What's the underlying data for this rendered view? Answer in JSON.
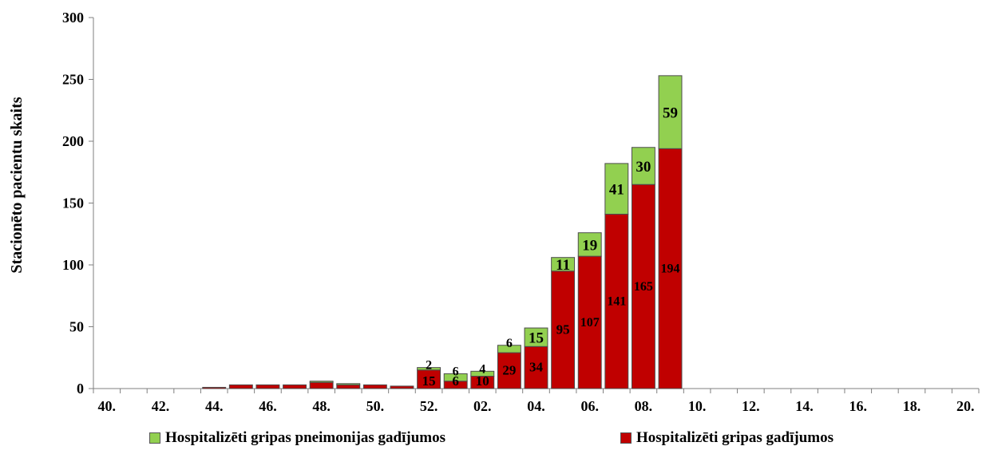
{
  "chart_data": {
    "type": "bar",
    "stacked": true,
    "ylabel": "Stacionēto pacientu skaits",
    "ylim": [
      0,
      300
    ],
    "yticks": [
      0,
      50,
      100,
      150,
      200,
      250,
      300
    ],
    "categories": [
      "40.",
      "41.",
      "42.",
      "43.",
      "44.",
      "45.",
      "46.",
      "47.",
      "48.",
      "49.",
      "50.",
      "51.",
      "52.",
      "01.",
      "02.",
      "03.",
      "04.",
      "05.",
      "06.",
      "07.",
      "08.",
      "09.",
      "10.",
      "11.",
      "12.",
      "13.",
      "14.",
      "15.",
      "16.",
      "17.",
      "18.",
      "19.",
      "20."
    ],
    "x_tick_labels": [
      "40.",
      "42.",
      "44.",
      "46.",
      "48.",
      "50.",
      "52.",
      "02.",
      "04.",
      "06.",
      "08.",
      "10.",
      "12.",
      "14.",
      "16.",
      "18.",
      "20."
    ],
    "series": [
      {
        "name": "Hospitalizēti gripas gadījumos",
        "color": "#c00000",
        "values": [
          0,
          0,
          0,
          0,
          1,
          3,
          3,
          3,
          5,
          3,
          3,
          2,
          15,
          6,
          10,
          29,
          34,
          95,
          107,
          141,
          165,
          194,
          0,
          0,
          0,
          0,
          0,
          0,
          0,
          0,
          0,
          0,
          0
        ],
        "labels": [
          null,
          null,
          null,
          null,
          null,
          null,
          null,
          null,
          null,
          null,
          null,
          null,
          "15",
          "6",
          "10",
          "29",
          "34",
          "95",
          "107",
          "141",
          "165",
          "194",
          null,
          null,
          null,
          null,
          null,
          null,
          null,
          null,
          null,
          null,
          null
        ]
      },
      {
        "name": "Hospitalizēti gripas pneimonijas gadījumos",
        "color": "#92d050",
        "values": [
          0,
          0,
          0,
          0,
          0,
          0,
          0,
          0,
          1,
          1,
          0,
          0,
          2,
          6,
          4,
          6,
          15,
          11,
          19,
          41,
          30,
          59,
          0,
          0,
          0,
          0,
          0,
          0,
          0,
          0,
          0,
          0,
          0
        ],
        "labels": [
          null,
          null,
          null,
          null,
          null,
          null,
          null,
          null,
          null,
          null,
          null,
          null,
          "2",
          "6",
          "4",
          "6",
          "15",
          "11",
          "19",
          "41",
          "30",
          "59",
          null,
          null,
          null,
          null,
          null,
          null,
          null,
          null,
          null,
          null,
          null
        ]
      }
    ],
    "legend": [
      {
        "label": "Hospitalizēti gripas pneimonijas gadījumos",
        "color": "#92d050"
      },
      {
        "label": "Hospitalizēti gripas gadījumos",
        "color": "#c00000"
      }
    ]
  }
}
